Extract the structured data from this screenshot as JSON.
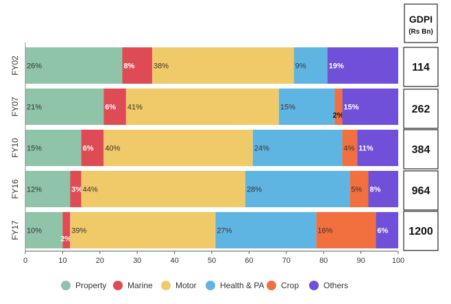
{
  "chart_data": {
    "type": "bar",
    "orientation": "horizontal-stacked-100",
    "categories": [
      "FY02",
      "FY07",
      "FY10",
      "FY16",
      "FY17"
    ],
    "series": [
      {
        "name": "Property",
        "color": "#8fc4a8",
        "values": [
          26,
          21,
          15,
          12,
          10
        ],
        "labels": [
          "26%",
          "21%",
          "15%",
          "12%",
          "10%"
        ]
      },
      {
        "name": "Marine",
        "color": "#de4b54",
        "values": [
          8,
          6,
          6,
          3,
          2
        ],
        "labels": [
          "8%",
          "6%",
          "6%",
          "3%",
          "2%"
        ]
      },
      {
        "name": "Motor",
        "color": "#f0ca68",
        "values": [
          38,
          41,
          40,
          44,
          39
        ],
        "labels": [
          "38%",
          "41%",
          "40%",
          "44%",
          "39%"
        ]
      },
      {
        "name": "Health & PA",
        "color": "#5fb5e2",
        "values": [
          9,
          15,
          24,
          28,
          27
        ],
        "labels": [
          "9%",
          "15%",
          "24%",
          "28%",
          "27%"
        ]
      },
      {
        "name": "Crop",
        "color": "#f26f3f",
        "values": [
          0,
          2,
          4,
          5,
          16
        ],
        "labels": [
          "",
          "2%",
          "4%",
          "5%",
          "16%"
        ]
      },
      {
        "name": "Others",
        "color": "#7050d8",
        "values": [
          19,
          15,
          11,
          8,
          6
        ],
        "labels": [
          "19%",
          "15%",
          "11%",
          "8%",
          "6%"
        ]
      }
    ],
    "x_ticks": [
      "0",
      "10",
      "20",
      "30",
      "40",
      "50",
      "60",
      "70",
      "80",
      "90",
      "100"
    ],
    "xlim": [
      0,
      100
    ],
    "legend_position": "bottom",
    "gdpi": {
      "title": "GDPI",
      "subtitle": "(Rs Bn)",
      "values": [
        "114",
        "262",
        "384",
        "964",
        "1200"
      ]
    }
  }
}
